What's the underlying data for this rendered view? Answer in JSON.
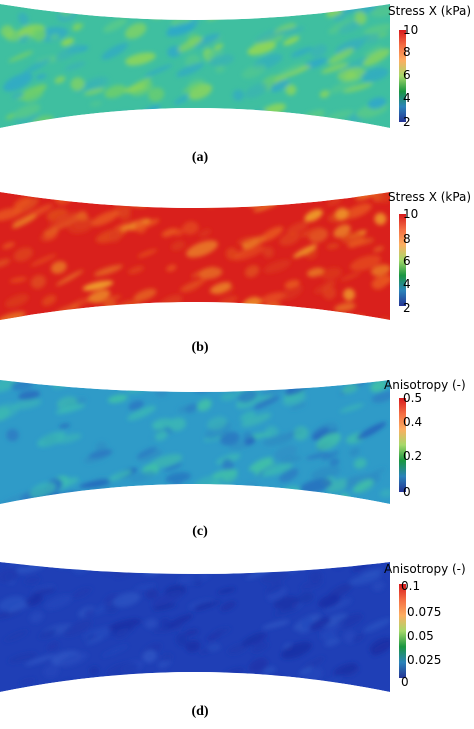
{
  "panels": [
    {
      "caption": "(a)",
      "legend_title": "Stress X (kPa)",
      "ticks": [
        "10",
        "8",
        "6",
        "4",
        "2"
      ],
      "colorbar": [
        "#d7191c",
        "#f46d43",
        "#fdae61",
        "#a6d96a",
        "#1a9641",
        "#2b83ba",
        "#253494"
      ],
      "field_base": "#3fbfa0",
      "field_patches": [
        "#2fa8c9",
        "#6fcf6a",
        "#58c98a",
        "#39b1b8",
        "#8fd657"
      ]
    },
    {
      "caption": "(b)",
      "legend_title": "Stress X (kPa)",
      "ticks": [
        "10",
        "8",
        "6",
        "4",
        "2"
      ],
      "colorbar": [
        "#d7191c",
        "#f46d43",
        "#fdae61",
        "#a6d96a",
        "#1a9641",
        "#2b83ba",
        "#253494"
      ],
      "field_base": "#d9201c",
      "field_patches": [
        "#e8561f",
        "#e04a1c",
        "#f0a02a",
        "#dc3a1c",
        "#e66a22"
      ]
    },
    {
      "caption": "(c)",
      "legend_title": "Anisotropy (-)",
      "ticks": [
        "0.5",
        "0.4",
        "0.2",
        "0"
      ],
      "colorbar": [
        "#d7191c",
        "#f46d43",
        "#fdae61",
        "#a6d96a",
        "#1a9641",
        "#2b83ba",
        "#253494"
      ],
      "field_base": "#2f9bc8",
      "field_patches": [
        "#2a78c2",
        "#3ab6b6",
        "#2466bd",
        "#40c0a8",
        "#2e8ec4"
      ]
    },
    {
      "caption": "(d)",
      "legend_title": "Anisotropy (-)",
      "ticks": [
        "0.1",
        "0.075",
        "0.05",
        "0.025",
        "0"
      ],
      "colorbar": [
        "#d7191c",
        "#f46d43",
        "#fdae61",
        "#a6d96a",
        "#1a9641",
        "#2b83ba",
        "#253494"
      ],
      "field_base": "#1f3fb6",
      "field_patches": [
        "#1c36ad",
        "#2448bd",
        "#1a30a6",
        "#2a52c2",
        "#1e3ab0"
      ]
    }
  ]
}
